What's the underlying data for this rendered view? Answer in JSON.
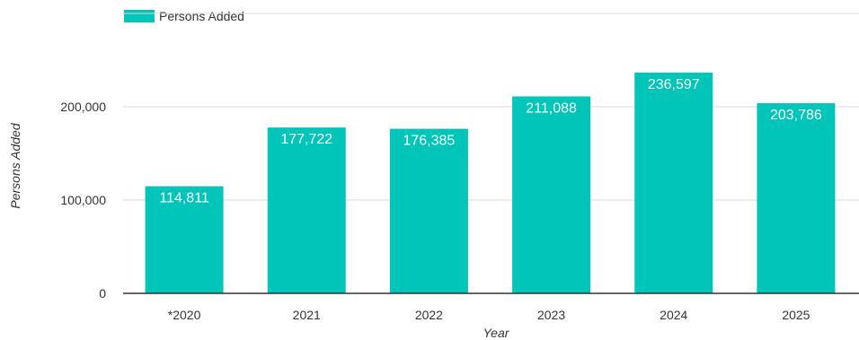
{
  "chart_data": {
    "type": "bar",
    "title": "",
    "xlabel": "Year",
    "ylabel": "Persons Added",
    "categories": [
      "*2020",
      "2021",
      "2022",
      "2023",
      "2024",
      "2025"
    ],
    "series": [
      {
        "name": "Persons Added",
        "values": [
          114811,
          177722,
          176385,
          211088,
          236597,
          203786
        ],
        "labels": [
          "114,811",
          "177,722",
          "176,385",
          "211,088",
          "236,597",
          "203,786"
        ]
      }
    ],
    "ylim": [
      0,
      300000
    ],
    "yticks": [
      0,
      100000,
      200000
    ],
    "ytick_labels": [
      "0",
      "100,000",
      "200,000"
    ],
    "grid": true,
    "legend": "top-left",
    "colors": {
      "bar": "#00c5b8",
      "grid": "#d9d9d9",
      "axis": "#333333"
    }
  }
}
